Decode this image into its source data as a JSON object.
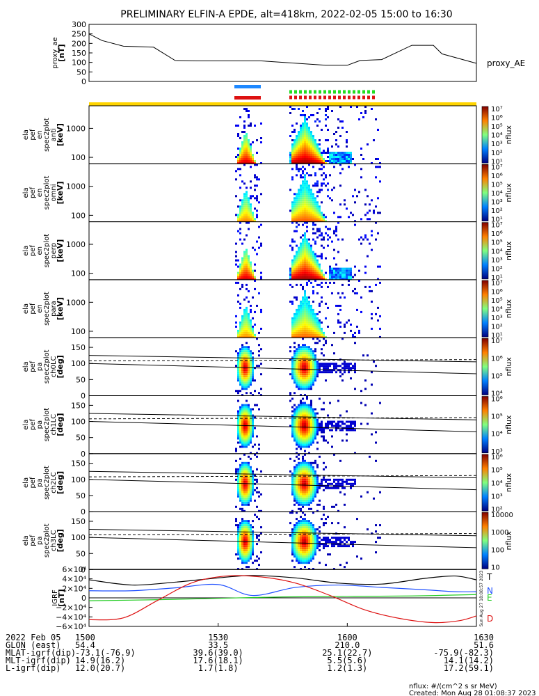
{
  "title": "PRELIMINARY ELFIN-A EPDE, alt=418km, 2022-02-05 15:00 to 16:30",
  "colors": {
    "sci_zone_yellow": "#ffd400",
    "blue_bar": "#1e88ff",
    "red_bar": "#dd1111",
    "green_dash": "#22dd22",
    "spin_dash_red": "#dd1111",
    "igrf_T": "#000000",
    "igrf_N": "#1e4fff",
    "igrf_E": "#22cc22",
    "igrf_D": "#dd1111"
  },
  "chart_data": [
    {
      "type": "line",
      "name": "proxy_ae",
      "ylabel_lines": [
        "proxy_ae",
        "[nT]"
      ],
      "series_label": "proxy_AE",
      "y_ticks": [
        "300",
        "250",
        "200",
        "150",
        "100",
        "50",
        "0"
      ],
      "ylim": [
        0,
        300
      ],
      "x_minutes": [
        0,
        3,
        8,
        15,
        20,
        25,
        40,
        55,
        60,
        63,
        68,
        75,
        80,
        82,
        90
      ],
      "y": [
        250,
        215,
        185,
        180,
        110,
        108,
        108,
        85,
        85,
        110,
        115,
        190,
        190,
        145,
        95
      ]
    },
    {
      "type": "heatmap",
      "name": "spec-anti",
      "ylabel_lines": [
        "ela",
        "pef",
        "en",
        "spec2plot",
        "anti",
        "[keV]"
      ],
      "y_ticks": [
        "1000",
        "100"
      ],
      "y_log": true,
      "ylim_keV": [
        60,
        6000
      ],
      "colorbar_ticks": [
        "10⁷",
        "10⁶",
        "10⁵",
        "10⁴",
        "10³",
        "10²",
        "10¹"
      ],
      "colorbar_label": "nflux",
      "intensity": 1.0,
      "tail": true
    },
    {
      "type": "heatmap",
      "name": "spec-omni",
      "ylabel_lines": [
        "ela",
        "pef",
        "en",
        "spec2plot",
        "omni",
        "[keV]"
      ],
      "y_ticks": [
        "1000",
        "100"
      ],
      "y_log": true,
      "ylim_keV": [
        60,
        6000
      ],
      "colorbar_ticks": [
        "10⁷",
        "10⁶",
        "10⁵",
        "10⁴",
        "10³",
        "10²",
        "10¹"
      ],
      "colorbar_label": "nflux",
      "intensity": 0.55,
      "tail": false
    },
    {
      "type": "heatmap",
      "name": "spec-perp",
      "ylabel_lines": [
        "ela",
        "pef",
        "en",
        "spec2plot",
        "perp",
        "[keV]"
      ],
      "y_ticks": [
        "1000",
        "100"
      ],
      "y_log": true,
      "ylim_keV": [
        60,
        6000
      ],
      "colorbar_ticks": [
        "10⁷",
        "10⁶",
        "10⁵",
        "10⁴",
        "10³",
        "10²",
        "10¹"
      ],
      "colorbar_label": "nflux",
      "intensity": 1.0,
      "tail": true
    },
    {
      "type": "heatmap",
      "name": "spec-para",
      "ylabel_lines": [
        "ela",
        "pef",
        "en",
        "spec2plot",
        "para",
        "[keV]"
      ],
      "y_ticks": [
        "1000",
        "100"
      ],
      "y_log": true,
      "ylim_keV": [
        60,
        6000
      ],
      "colorbar_ticks": [
        "10⁷",
        "10⁶",
        "10⁵",
        "10⁴",
        "10³",
        "10²",
        "10¹"
      ],
      "colorbar_label": "nflux",
      "intensity": 0.5,
      "tail": false
    },
    {
      "type": "heatmap",
      "name": "pa-ch0",
      "ylabel_lines": [
        "ela",
        "pef",
        "pa",
        "spec2plot",
        "ch0LC",
        "[deg]"
      ],
      "y_ticks": [
        "150",
        "100",
        "50",
        "0"
      ],
      "ylim": [
        0,
        180
      ],
      "colorbar_ticks": [
        "10⁷",
        "10⁶",
        "10⁵",
        "10⁴"
      ],
      "colorbar_label": "nflux"
    },
    {
      "type": "heatmap",
      "name": "pa-ch1",
      "ylabel_lines": [
        "ela",
        "pef",
        "pa",
        "spec2plot",
        "ch1LC",
        "[deg]"
      ],
      "y_ticks": [
        "150",
        "100",
        "50",
        "0"
      ],
      "ylim": [
        0,
        180
      ],
      "colorbar_ticks": [
        "10⁶",
        "10⁵",
        "10⁴",
        "10³"
      ],
      "colorbar_label": "nflux"
    },
    {
      "type": "heatmap",
      "name": "pa-ch2",
      "ylabel_lines": [
        "ela",
        "pef",
        "pa",
        "spec2plot",
        "ch2LC",
        "[deg]"
      ],
      "y_ticks": [
        "150",
        "100",
        "50",
        "0"
      ],
      "ylim": [
        0,
        180
      ],
      "colorbar_ticks": [
        "10⁶",
        "10⁵",
        "10⁴",
        "10³",
        "10²"
      ],
      "colorbar_label": "nflux"
    },
    {
      "type": "heatmap",
      "name": "pa-ch3",
      "ylabel_lines": [
        "ela",
        "pef",
        "pa",
        "spec2plot",
        "ch3LC",
        "[deg]"
      ],
      "y_ticks": [
        "150",
        "100",
        "50",
        "0"
      ],
      "ylim": [
        0,
        180
      ],
      "colorbar_ticks": [
        "10000",
        "1000",
        "100",
        "10"
      ],
      "colorbar_label": "nflux"
    },
    {
      "type": "line",
      "name": "igrf",
      "ylabel_lines": [
        "IGRF",
        "[nT]"
      ],
      "y_ticks": [
        "6×10⁴",
        "4×10⁴",
        "2×10⁴",
        "0",
        "−2×10⁴",
        "−4×10⁴",
        "−6×10⁴"
      ],
      "ylim": [
        -60000,
        60000
      ],
      "side_text": "Sun Aug 27 18:08:57 2023",
      "series": [
        {
          "name": "T",
          "color": "#000000",
          "x": [
            0,
            10,
            20,
            30,
            38,
            48,
            58,
            68,
            78,
            85,
            90
          ],
          "y": [
            38000,
            27000,
            33000,
            42000,
            47000,
            42000,
            31000,
            29000,
            41000,
            46000,
            38000
          ]
        },
        {
          "name": "N",
          "color": "#1e4fff",
          "x": [
            0,
            10,
            20,
            30,
            38,
            48,
            58,
            68,
            78,
            85,
            90
          ],
          "y": [
            15000,
            15000,
            21000,
            28000,
            5000,
            22000,
            27000,
            22000,
            17000,
            13000,
            13000
          ]
        },
        {
          "name": "E",
          "color": "#22cc22",
          "x": [
            0,
            15,
            30,
            45,
            60,
            75,
            90
          ],
          "y": [
            -6000,
            -4000,
            -1000,
            2000,
            3000,
            4000,
            7000
          ]
        },
        {
          "name": "D",
          "color": "#dd1111",
          "x": [
            0,
            8,
            16,
            24,
            32,
            40,
            48,
            56,
            64,
            72,
            80,
            86,
            90
          ],
          "y": [
            -46000,
            -42000,
            -5000,
            32000,
            46000,
            44000,
            31000,
            5000,
            -25000,
            -43000,
            -52000,
            -48000,
            -38000
          ]
        }
      ]
    }
  ],
  "time_axis": {
    "tick_labels": [
      "1500",
      "1530",
      "1600",
      "1630"
    ],
    "tick_minutes": [
      0,
      30,
      60,
      90
    ],
    "rows": [
      {
        "label": "2022 Feb 05",
        "values": [
          "1500",
          "1530",
          "1600",
          "1630"
        ]
      },
      {
        "label": "GLON (east)",
        "values": [
          "54.4",
          "33.5",
          "210.0",
          "51.6"
        ]
      },
      {
        "label": "MLAT-igrf(dip)",
        "values": [
          "-73.1(-76.9)",
          "39.6(39.0)",
          "25.1(22.7)",
          "-75.9(-82.3)"
        ]
      },
      {
        "label": "MLT-igrf(dip)",
        "values": [
          "14.9(16.2)",
          "17.6(18.1)",
          "5.5(5.6)",
          "14.1(14.2)"
        ]
      },
      {
        "label": "L-igrf(dip)",
        "values": [
          "12.0(20.7)",
          "1.7(1.8)",
          "1.2(1.3)",
          "17.2(59.1)"
        ]
      }
    ]
  },
  "footer": {
    "units": "nflux: #/(cm^2 s sr MeV)",
    "created": "Created: Mon Aug 28 01:08:37 2023"
  }
}
